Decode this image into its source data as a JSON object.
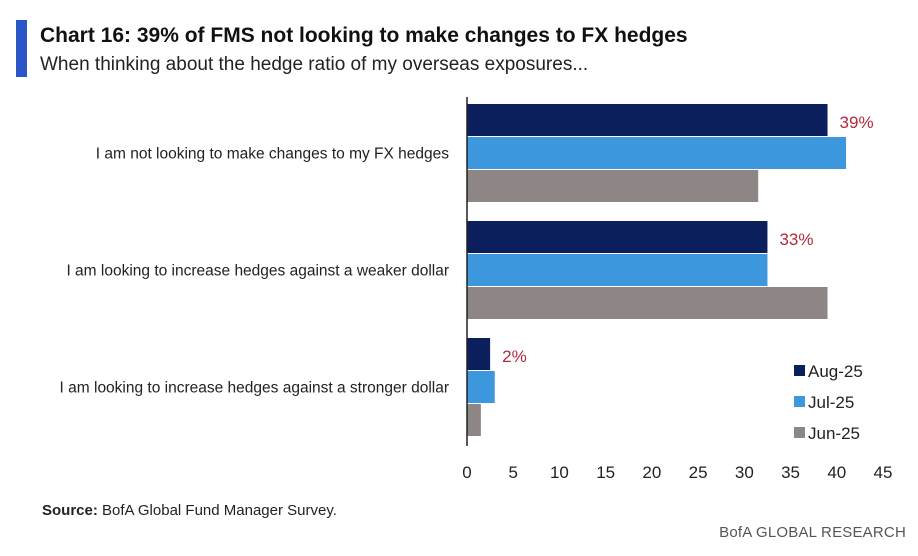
{
  "header": {
    "title": "Chart 16: 39% of FMS not looking to make changes to FX hedges",
    "subtitle": "When thinking about the hedge ratio of my overseas exposures..."
  },
  "footer": {
    "source_label": "Source:",
    "source_text": " BofA Global Fund Manager Survey.",
    "brand": "BofA GLOBAL RESEARCH"
  },
  "colors": {
    "aug": "#0b1f5c",
    "jul": "#3d97dd",
    "jun": "#8e8585",
    "label": "#b5283a",
    "accent": "#2a56c6"
  },
  "chart_data": {
    "type": "bar",
    "orientation": "horizontal",
    "title": "Chart 16: 39% of FMS not looking to make changes to FX hedges",
    "subtitle": "When thinking about the hedge ratio of my overseas exposures...",
    "categories": [
      "I am not looking to make changes to my FX hedges",
      "I am looking to increase hedges against a weaker dollar",
      "I am looking to increase hedges against a stronger dollar"
    ],
    "series": [
      {
        "name": "Aug-25",
        "values": [
          39,
          32.5,
          2.5
        ],
        "color": "#0b1f5c"
      },
      {
        "name": "Jul-25",
        "values": [
          41,
          32.5,
          3
        ],
        "color": "#3d97dd"
      },
      {
        "name": "Jun-25",
        "values": [
          31.5,
          39,
          1.5
        ],
        "color": "#8e8585"
      }
    ],
    "data_labels": [
      "39%",
      "33%",
      "2%"
    ],
    "xlim": [
      0,
      45
    ],
    "xticks": [
      0,
      5,
      10,
      15,
      20,
      25,
      30,
      35,
      40,
      45
    ],
    "xlabel": "",
    "ylabel": "",
    "legend_position": "bottom-right",
    "grid": false
  }
}
